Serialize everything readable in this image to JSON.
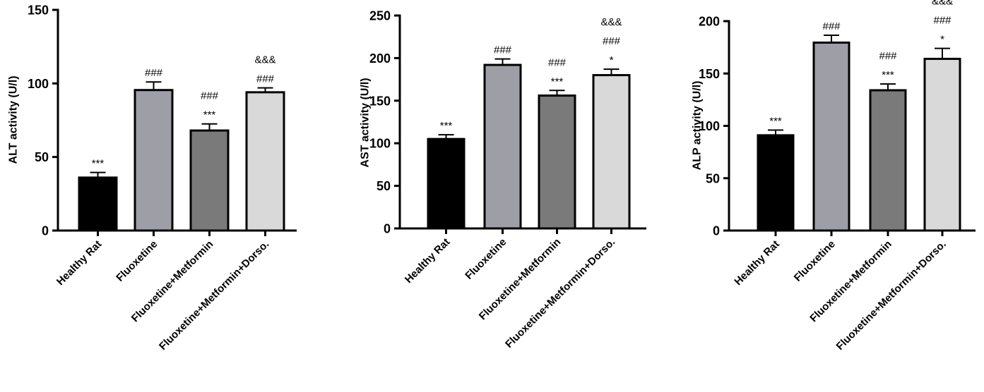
{
  "chart_data": [
    {
      "type": "bar",
      "ylabel": "ALT activity (U/l)",
      "ylim": [
        0,
        150
      ],
      "yticks": [
        0,
        50,
        100,
        150
      ],
      "categories": [
        "Healthy Rat",
        "Fluoxetine",
        "Fluoxetine+Metformin",
        "Fluoxetine+Metformin+Dorso."
      ],
      "values": [
        36,
        95.5,
        68,
        94
      ],
      "errors": [
        3.5,
        5.5,
        4.5,
        3
      ],
      "colors": [
        "#000000",
        "#9e9ea6",
        "#7a7a7a",
        "#d9d9d9"
      ],
      "annotations": [
        [
          "***"
        ],
        [
          "###"
        ],
        [
          "***",
          "###"
        ],
        [
          "###",
          "&&&"
        ]
      ]
    },
    {
      "type": "bar",
      "ylabel": "AST activity (U/l)",
      "ylim": [
        0,
        250
      ],
      "yticks": [
        0,
        50,
        100,
        150,
        200,
        250
      ],
      "categories": [
        "Healthy Rat",
        "Fluoxetine",
        "Fluoxetine+Metformin",
        "Fluoxetine+Metformin+Dorso."
      ],
      "values": [
        105,
        192,
        156,
        180
      ],
      "errors": [
        5,
        7,
        6,
        7
      ],
      "colors": [
        "#000000",
        "#9e9ea6",
        "#7a7a7a",
        "#d9d9d9"
      ],
      "annotations": [
        [
          "***"
        ],
        [
          "###"
        ],
        [
          "***",
          "###"
        ],
        [
          "*",
          "###",
          "&&&"
        ]
      ]
    },
    {
      "type": "bar",
      "ylabel": "ALP activity (U/l)",
      "ylim": [
        0,
        200
      ],
      "yticks": [
        0,
        50,
        100,
        150,
        200
      ],
      "categories": [
        "Healthy Rat",
        "Fluoxetine",
        "Fluoxetine+Metformin",
        "Fluoxetine+Metformin+Dorso."
      ],
      "values": [
        91,
        179.5,
        134,
        164
      ],
      "errors": [
        5,
        7,
        6,
        10
      ],
      "colors": [
        "#000000",
        "#9e9ea6",
        "#7a7a7a",
        "#d9d9d9"
      ],
      "annotations": [
        [
          "***"
        ],
        [
          "###"
        ],
        [
          "***",
          "###"
        ],
        [
          "*",
          "###",
          "&&&"
        ]
      ]
    }
  ]
}
